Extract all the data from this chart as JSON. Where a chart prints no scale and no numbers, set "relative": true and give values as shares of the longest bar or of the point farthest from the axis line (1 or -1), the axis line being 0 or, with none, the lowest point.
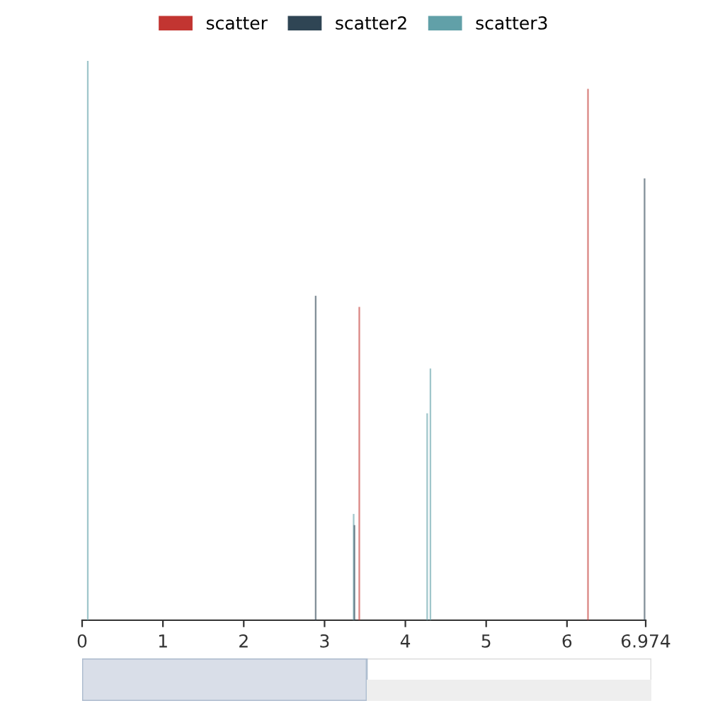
{
  "chart_data": {
    "type": "bar",
    "relative": true,
    "legend": "top",
    "grid": false,
    "xlim": [
      0,
      6.974
    ],
    "xticks": [
      0,
      1,
      2,
      3,
      4,
      5,
      6,
      6.974
    ],
    "series": [
      {
        "name": "scatter",
        "color": "#c23531",
        "x": [
          3.43,
          6.26
        ],
        "values": [
          0.56,
          0.95
        ]
      },
      {
        "name": "scatter2",
        "color": "#2f4554",
        "x": [
          2.89,
          3.37,
          6.96
        ],
        "values": [
          0.58,
          0.17,
          0.79
        ]
      },
      {
        "name": "scatter3",
        "color": "#61a0a8",
        "x": [
          0.07,
          3.36,
          4.27,
          4.31
        ],
        "values": [
          1.0,
          0.19,
          0.37,
          0.45
        ]
      }
    ]
  }
}
